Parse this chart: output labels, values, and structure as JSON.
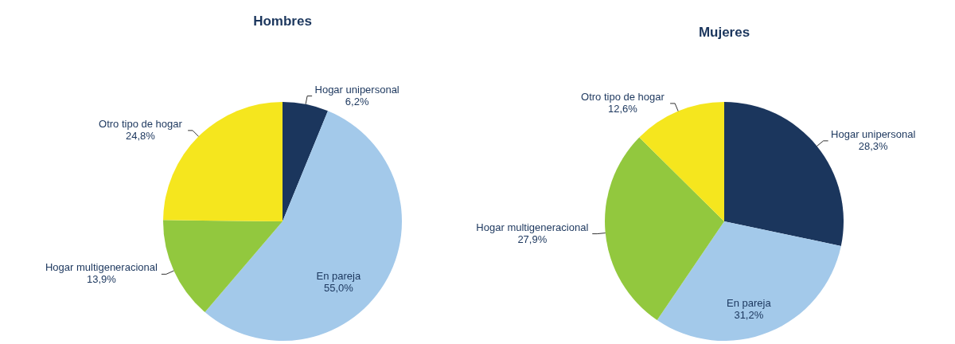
{
  "chart_data": [
    {
      "type": "pie",
      "title": "Hombres",
      "categories": [
        "Hogar unipersonal",
        "En pareja",
        "Hogar multigeneracional",
        "Otro tipo de hogar"
      ],
      "values": [
        6.2,
        55.0,
        13.9,
        24.8
      ],
      "value_labels": [
        "6,2%",
        "55,0%",
        "13,9%",
        "24,8%"
      ],
      "colors": [
        "#1b365d",
        "#a3c9ea",
        "#92c83e",
        "#f5e61e"
      ]
    },
    {
      "type": "pie",
      "title": "Mujeres",
      "categories": [
        "Hogar unipersonal",
        "En pareja",
        "Hogar multigeneracional",
        "Otro tipo de hogar"
      ],
      "values": [
        28.3,
        31.2,
        27.9,
        12.6
      ],
      "value_labels": [
        "28,3%",
        "31,2%",
        "27,9%",
        "12,6%"
      ],
      "colors": [
        "#1b365d",
        "#a3c9ea",
        "#92c83e",
        "#f5e61e"
      ]
    }
  ]
}
